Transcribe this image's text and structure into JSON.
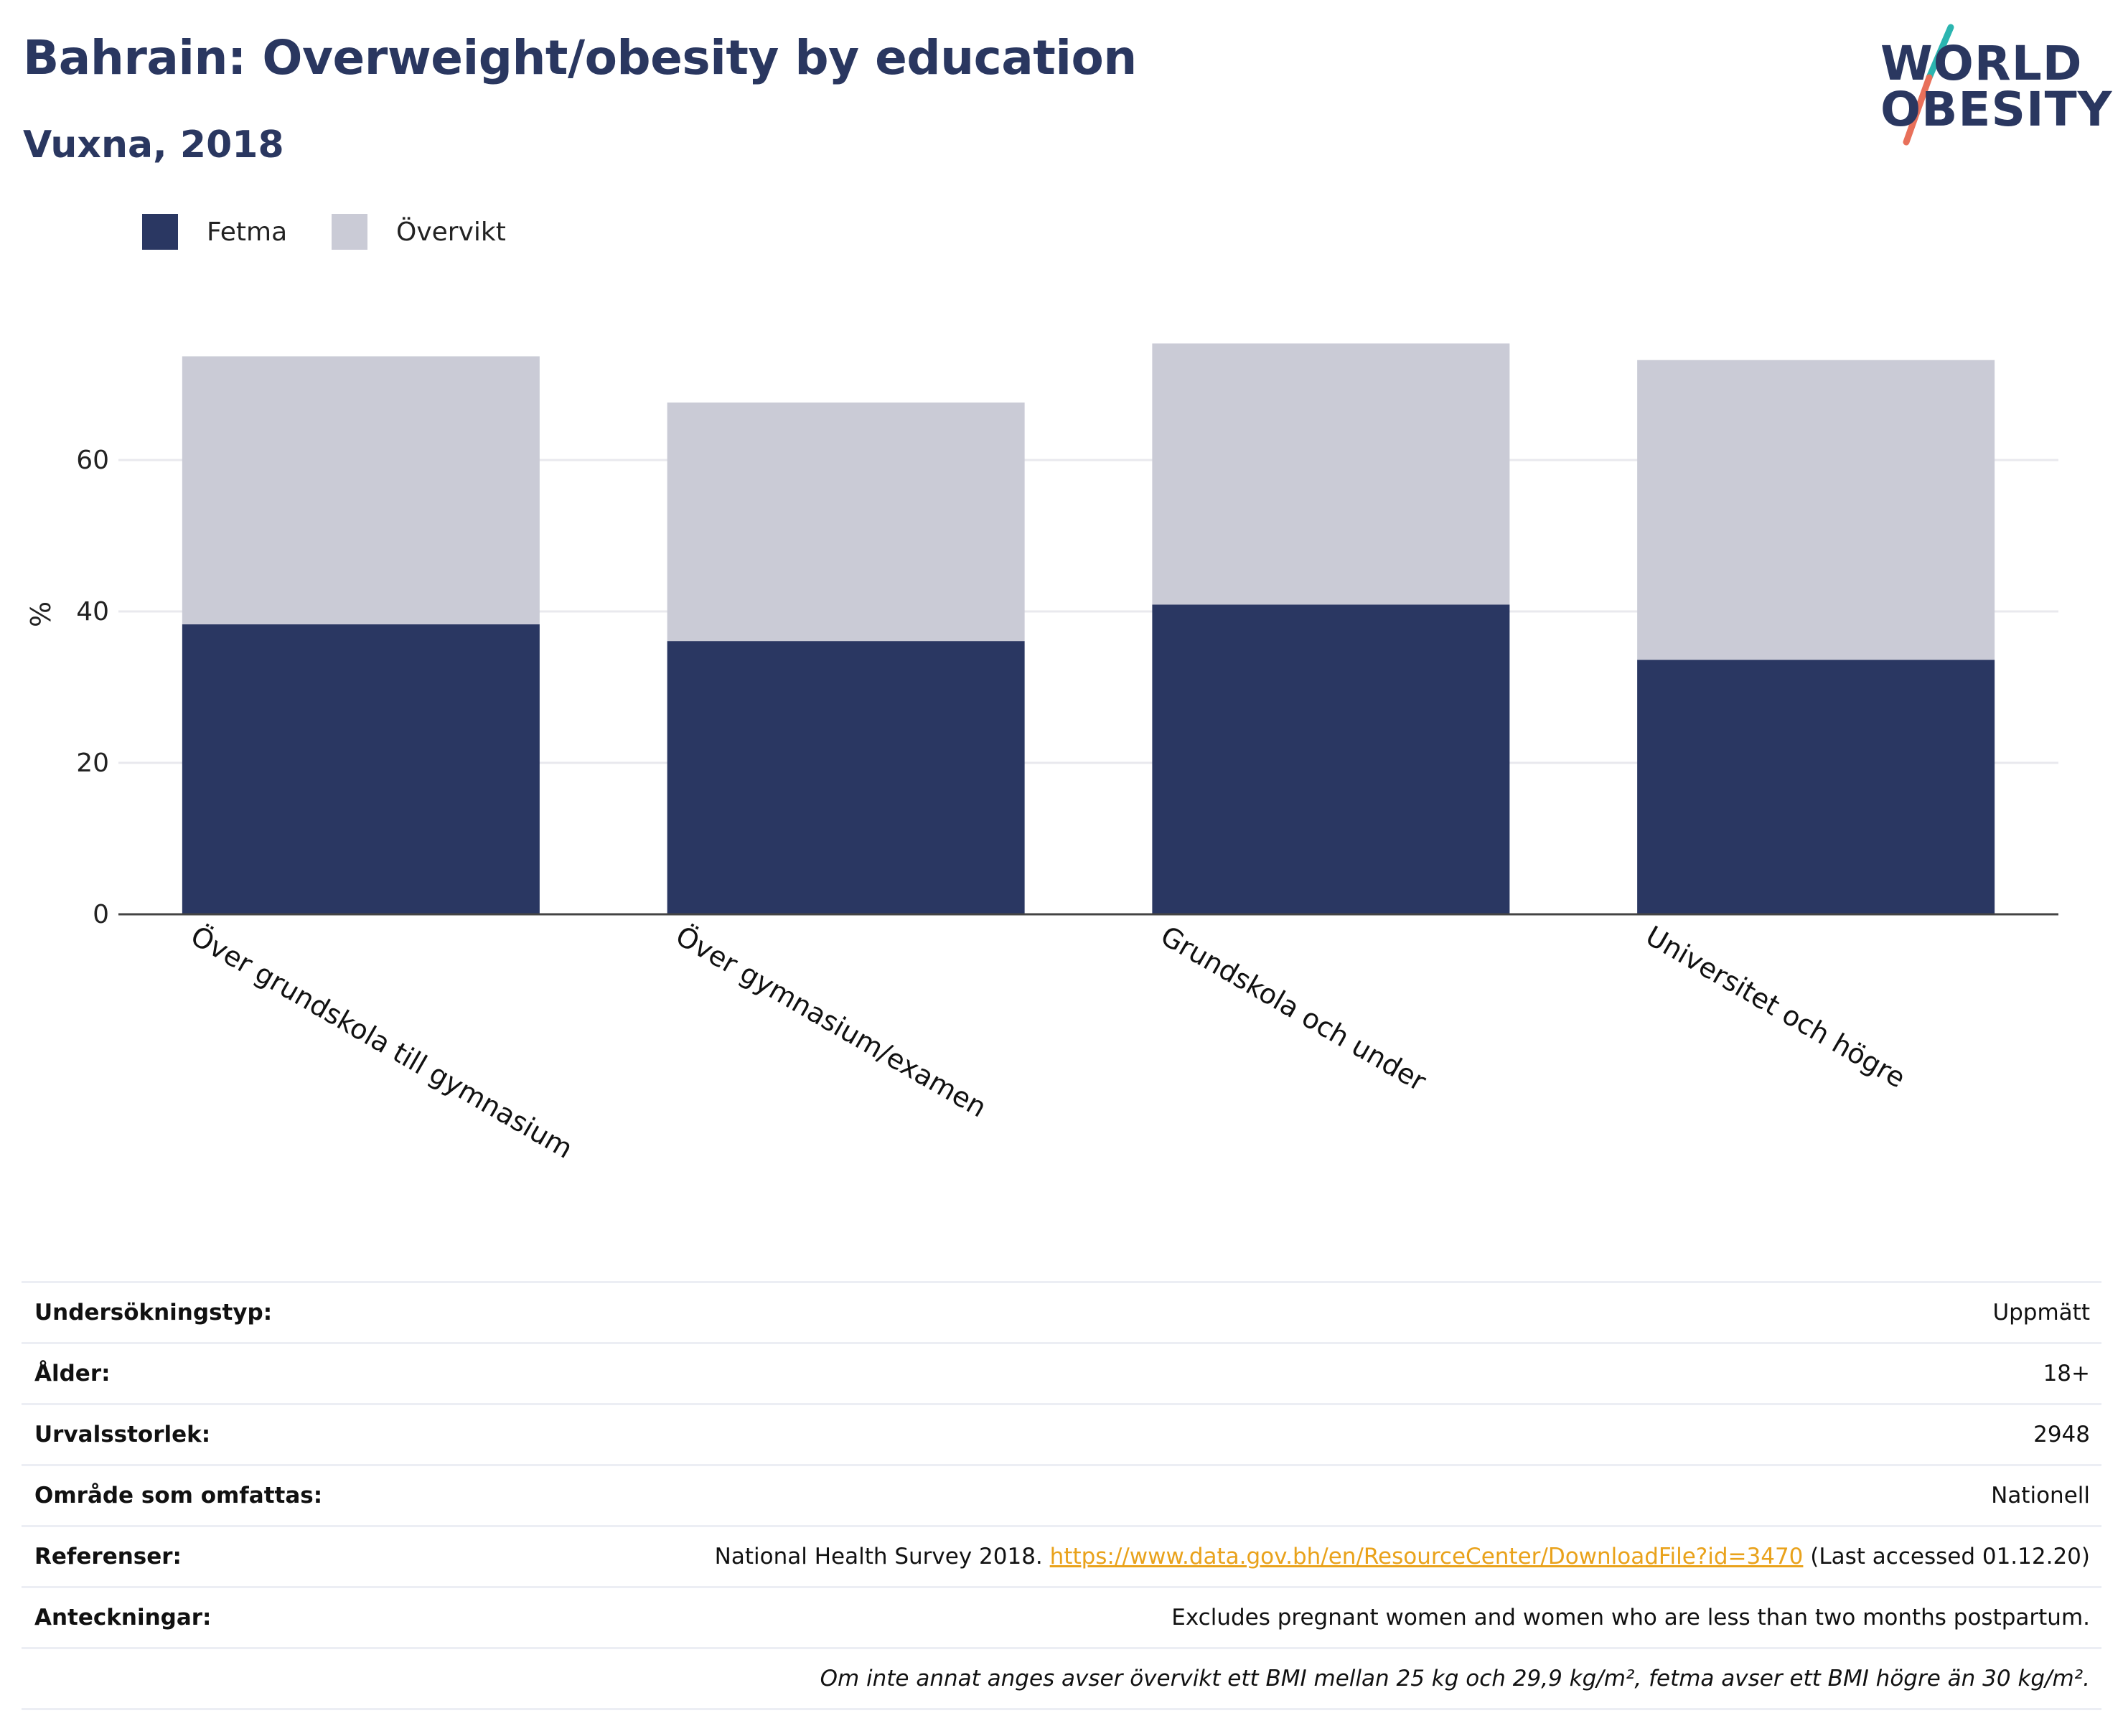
{
  "header": {
    "title": "Bahrain: Overweight/obesity by education",
    "subtitle": "Vuxna, 2018"
  },
  "logo": {
    "line1": "WORLD",
    "line2": "OBESITY",
    "colors": {
      "text": "#2a3760",
      "slash_top": "#2bb5b0",
      "slash_bottom": "#e8705a"
    }
  },
  "legend": [
    {
      "label": "Fetma",
      "color": "#2a3762"
    },
    {
      "label": "Övervikt",
      "color": "#cacbd6"
    }
  ],
  "chart_data": {
    "type": "bar",
    "stacked": true,
    "categories": [
      "Över grundskola till gymnasium",
      "Över gymnasium/examen",
      "Grundskola och under",
      "Universitet och högre"
    ],
    "series": [
      {
        "name": "Fetma",
        "color": "#2a3762",
        "values": [
          38.3,
          36.1,
          40.9,
          33.6
        ]
      },
      {
        "name": "Övervikt",
        "color": "#cacbd6",
        "values": [
          35.4,
          31.5,
          34.5,
          39.6
        ]
      }
    ],
    "ylabel": "%",
    "xlabel": "",
    "yticks": [
      0,
      20,
      40,
      60
    ],
    "ylim": [
      0,
      80
    ],
    "grid": true,
    "legend_position": "top-left"
  },
  "meta": {
    "rows": [
      {
        "label": "Undersökningstyp:",
        "value": "Uppmätt"
      },
      {
        "label": "Ålder:",
        "value": "18+"
      },
      {
        "label": "Urvalsstorlek:",
        "value": "2948"
      },
      {
        "label": "Område som omfattas:",
        "value": "Nationell"
      }
    ],
    "references": {
      "label": "Referenser:",
      "prefix": "National Health Survey 2018. ",
      "link": "https://www.data.gov.bh/en/ResourceCenter/DownloadFile?id=3470",
      "suffix": " (Last accessed 01.12.20)"
    },
    "notes": {
      "label": "Anteckningar:",
      "value": "Excludes pregnant women and women who are less than two months postpartum."
    },
    "footnote": "Om inte annat anges avser övervikt ett BMI mellan 25 kg och 29,9 kg/m², fetma avser ett BMI högre än 30 kg/m²."
  }
}
